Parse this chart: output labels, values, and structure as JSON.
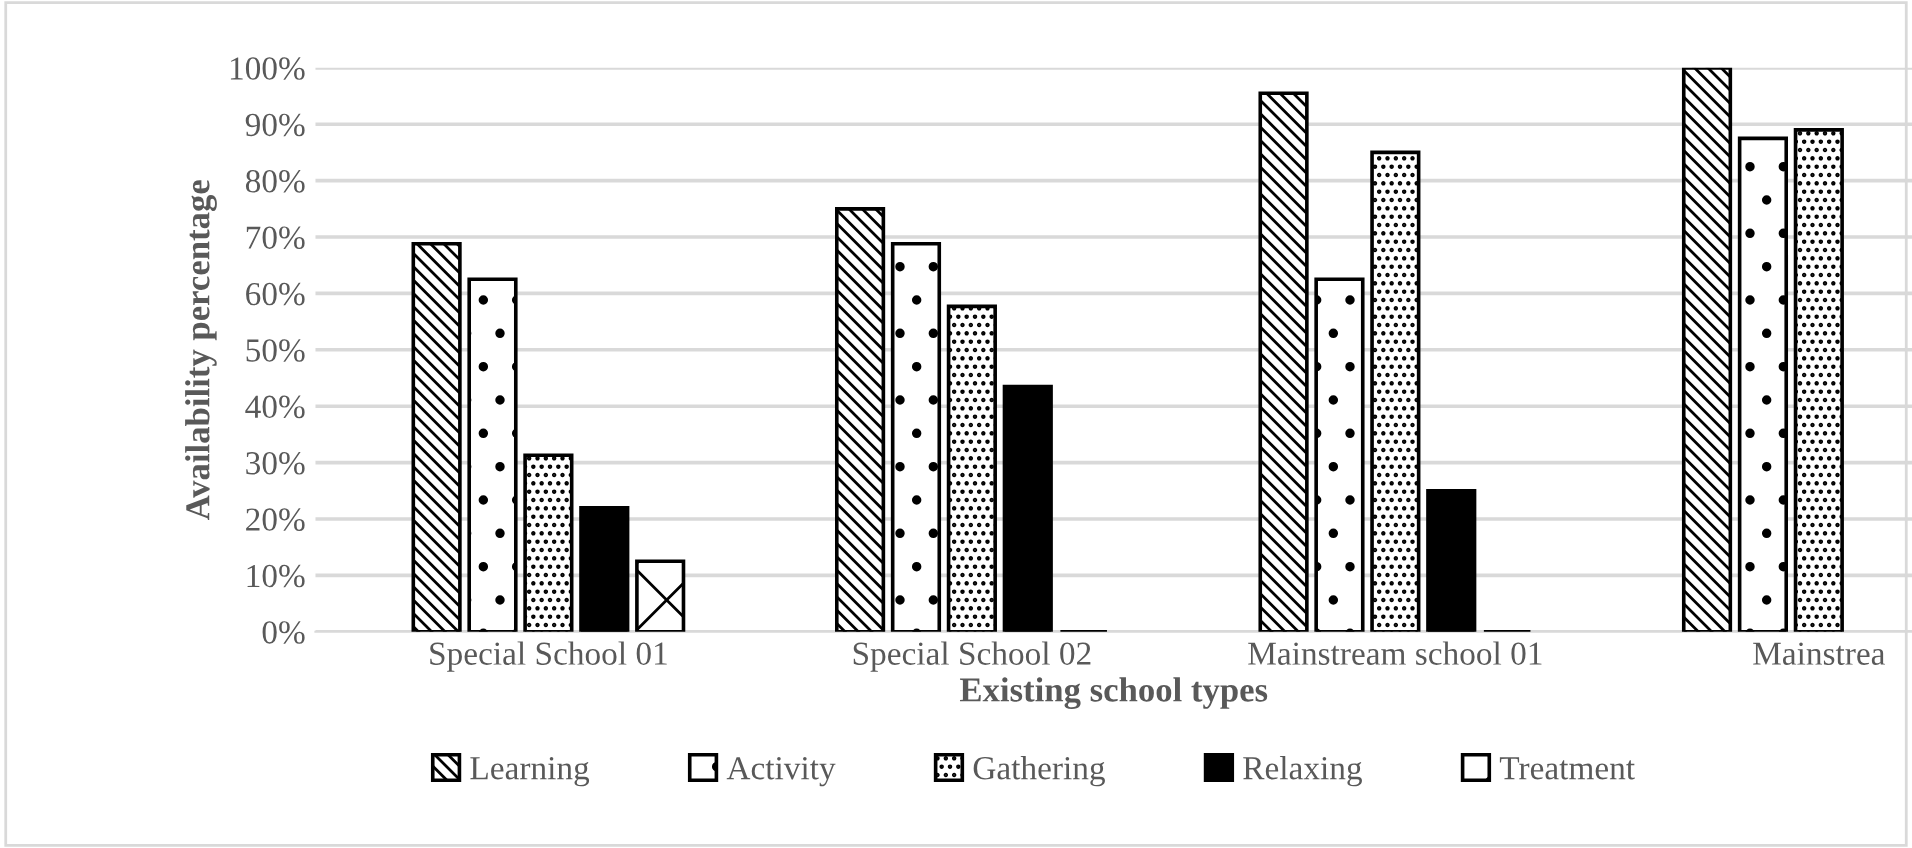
{
  "chart_data": {
    "type": "bar",
    "xlabel": "Existing school types",
    "ylabel": "Availability percentage",
    "categories": [
      "Special School 01",
      "Special School 02",
      "Mainstream school 01",
      "Mainstrea"
    ],
    "series": [
      {
        "name": "Learning",
        "color": "#000000",
        "values": [
          68.8,
          75,
          95.5,
          100
        ]
      },
      {
        "name": "Activity",
        "color": "#000000",
        "values": [
          62.5,
          68.8,
          62.5,
          87.5
        ]
      },
      {
        "name": "Gathering",
        "color": "#000000",
        "values": [
          31.3,
          57.7,
          85,
          89
        ]
      },
      {
        "name": "Relaxing",
        "color": "#000000",
        "values": [
          22,
          43.5,
          25,
          null
        ]
      },
      {
        "name": "Treatment",
        "color": "#000000",
        "values": [
          12.5,
          0,
          0,
          null
        ]
      }
    ],
    "ylim": [
      0,
      100
    ],
    "yticks": [
      {
        "value": 0,
        "label": "0%"
      },
      {
        "value": 10,
        "label": "10%"
      },
      {
        "value": 20,
        "label": "20%"
      },
      {
        "value": 30,
        "label": "30%"
      },
      {
        "value": 40,
        "label": "40%"
      },
      {
        "value": 50,
        "label": "50%"
      },
      {
        "value": 60,
        "label": "60%"
      },
      {
        "value": 70,
        "label": "70%"
      },
      {
        "value": 80,
        "label": "80%"
      },
      {
        "value": 90,
        "label": "90%"
      },
      {
        "value": 100,
        "label": "100%"
      }
    ],
    "grid": "y",
    "legend": "bottom"
  }
}
